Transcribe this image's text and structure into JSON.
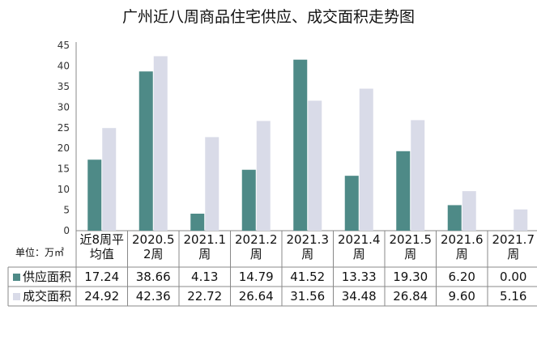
{
  "chart_data": {
    "type": "bar",
    "title": "广州近八周商品住宅供应、成交面积走势图",
    "unit_label": "单位：万㎡",
    "categories": [
      [
        "近8周平",
        "均值"
      ],
      [
        "2020.5",
        "2周"
      ],
      [
        "2021.1",
        "周"
      ],
      [
        "2021.2",
        "周"
      ],
      [
        "2021.3",
        "周"
      ],
      [
        "2021.4",
        "周"
      ],
      [
        "2021.5",
        "周"
      ],
      [
        "2021.6",
        "周"
      ],
      [
        "2021.7",
        "周"
      ]
    ],
    "ylim": [
      0,
      45
    ],
    "yticks": [
      0,
      5,
      10,
      15,
      20,
      25,
      30,
      35,
      40,
      45
    ],
    "grid": false,
    "legend": "data-table",
    "series": [
      {
        "name": "供应面积",
        "color": "#4e8a87",
        "values": [
          17.24,
          38.66,
          4.13,
          14.79,
          41.52,
          13.33,
          19.3,
          6.2,
          0.0
        ],
        "labels": [
          "17.24",
          "38.66",
          "4.13",
          "14.79",
          "41.52",
          "13.33",
          "19.30",
          "6.20",
          "0.00"
        ]
      },
      {
        "name": "成交面积",
        "color": "#d9dbe8",
        "values": [
          24.92,
          42.36,
          22.72,
          26.64,
          31.56,
          34.48,
          26.84,
          9.6,
          5.16
        ],
        "labels": [
          "24.92",
          "42.36",
          "22.72",
          "26.64",
          "31.56",
          "34.48",
          "26.84",
          "9.60",
          "5.16"
        ]
      }
    ]
  }
}
